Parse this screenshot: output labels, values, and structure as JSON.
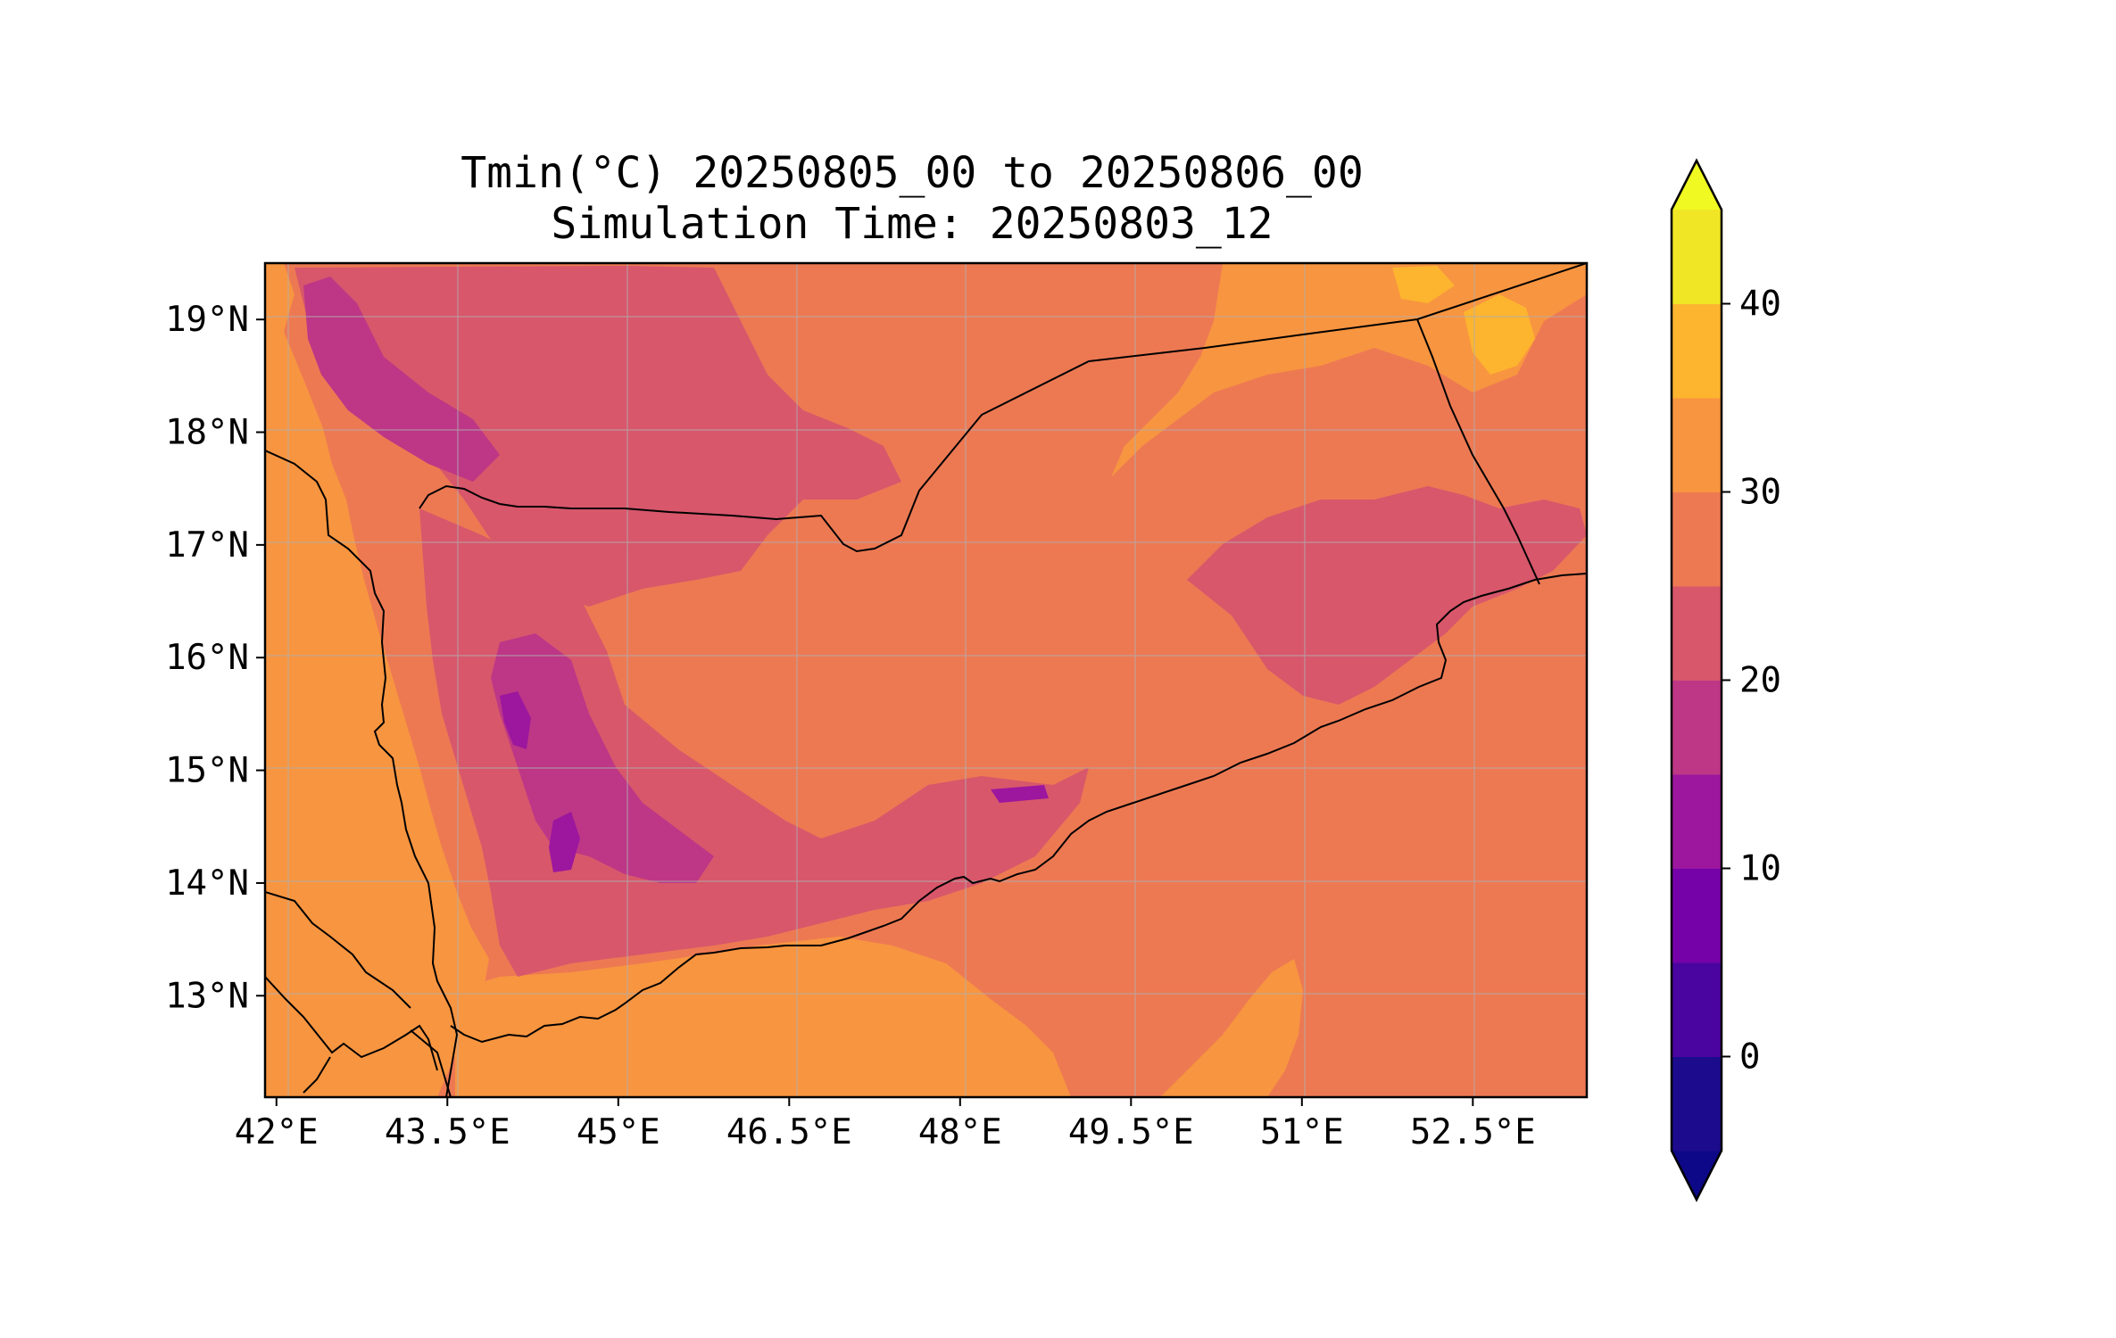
{
  "title": {
    "line1": "Tmin(°C) 20250805_00 to 20250806_00",
    "line2": "Simulation Time: 20250803_12"
  },
  "map": {
    "variable": "Tmin",
    "units": "°C",
    "lon_range": [
      41.9,
      53.5
    ],
    "lat_range": [
      12.1,
      19.5
    ],
    "grid": true,
    "lon_ticks": [
      {
        "value": 42.0,
        "label": "42°E"
      },
      {
        "value": 43.5,
        "label": "43.5°E"
      },
      {
        "value": 45.0,
        "label": "45°E"
      },
      {
        "value": 46.5,
        "label": "46.5°E"
      },
      {
        "value": 48.0,
        "label": "48°E"
      },
      {
        "value": 49.5,
        "label": "49.5°E"
      },
      {
        "value": 51.0,
        "label": "51°E"
      },
      {
        "value": 52.5,
        "label": "52.5°E"
      }
    ],
    "lat_ticks": [
      {
        "value": 19,
        "label": "19°N"
      },
      {
        "value": 18,
        "label": "18°N"
      },
      {
        "value": 17,
        "label": "17°N"
      },
      {
        "value": 16,
        "label": "16°N"
      },
      {
        "value": 15,
        "label": "15°N"
      },
      {
        "value": 14,
        "label": "14°N"
      },
      {
        "value": 13,
        "label": "13°N"
      }
    ]
  },
  "colorbar": {
    "extend": "both",
    "levels": [
      -5,
      0,
      5,
      10,
      15,
      20,
      25,
      30,
      35,
      40,
      45
    ],
    "colors": [
      "#1c0b8c",
      "#4a04a0",
      "#7402a8",
      "#9c179e",
      "#bd3786",
      "#d8576b",
      "#ed7953",
      "#f89540",
      "#fdb42f",
      "#f0e625"
    ],
    "under_color": "#0d0887",
    "over_color": "#f0f921",
    "ticks": [
      {
        "value": 0,
        "label": "0"
      },
      {
        "value": 10,
        "label": "10"
      },
      {
        "value": 20,
        "label": "20"
      },
      {
        "value": 30,
        "label": "30"
      },
      {
        "value": 40,
        "label": "40"
      }
    ]
  },
  "palette": {
    "band_15_20": "#bd3786",
    "band_20_25": "#d8576b",
    "band_25_30": "#ed7953",
    "band_30_35": "#f89540",
    "band_35_40": "#fdb42f",
    "band_10_15": "#9c179e",
    "border": "#000000",
    "gridline": "#b0b0b0"
  }
}
